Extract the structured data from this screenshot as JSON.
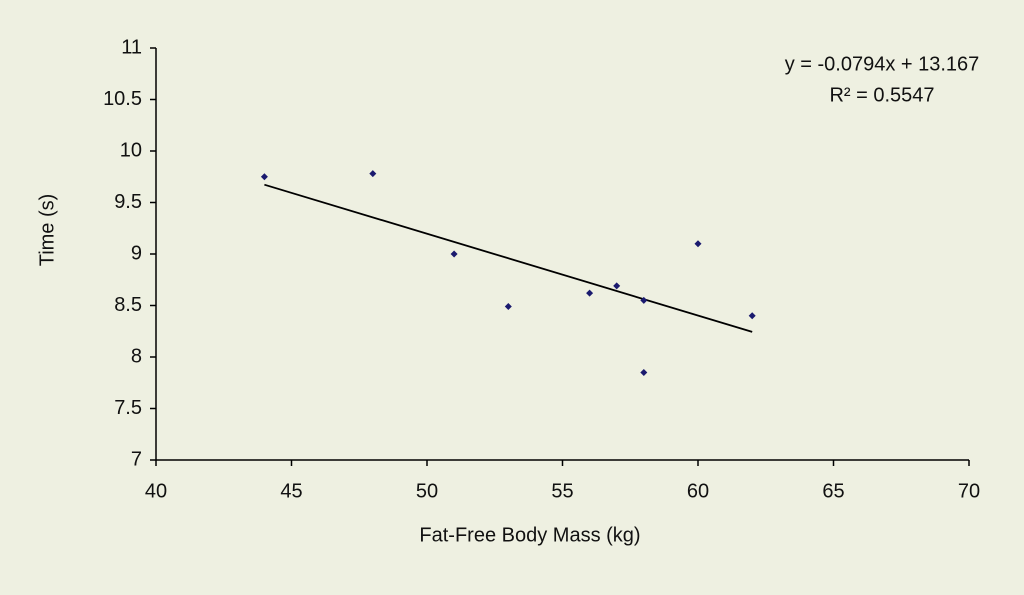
{
  "chart_data": {
    "type": "scatter",
    "x_label": "Fat-Free Body Mass (kg)",
    "y_label": "Time (s)",
    "x": [
      44,
      48,
      51,
      53,
      56,
      57,
      58,
      58,
      60,
      62
    ],
    "values": [
      9.75,
      9.78,
      9.0,
      8.49,
      8.62,
      8.69,
      8.55,
      7.85,
      9.1,
      8.4
    ],
    "color": "#1a1a6e",
    "trendline": {
      "x": [
        44,
        62
      ],
      "values": [
        9.673,
        8.244
      ],
      "color": "#000000"
    },
    "annotations": [
      "y = -0.0794x + 13.167",
      "R² = 0.5547"
    ],
    "xlim": [
      40,
      70
    ],
    "xticks": [
      40,
      45,
      50,
      55,
      60,
      65,
      70
    ],
    "ylim": [
      7,
      11
    ],
    "yticks": [
      7,
      7.5,
      8,
      8.5,
      9,
      9.5,
      10,
      10.5,
      11
    ],
    "grid": false
  }
}
